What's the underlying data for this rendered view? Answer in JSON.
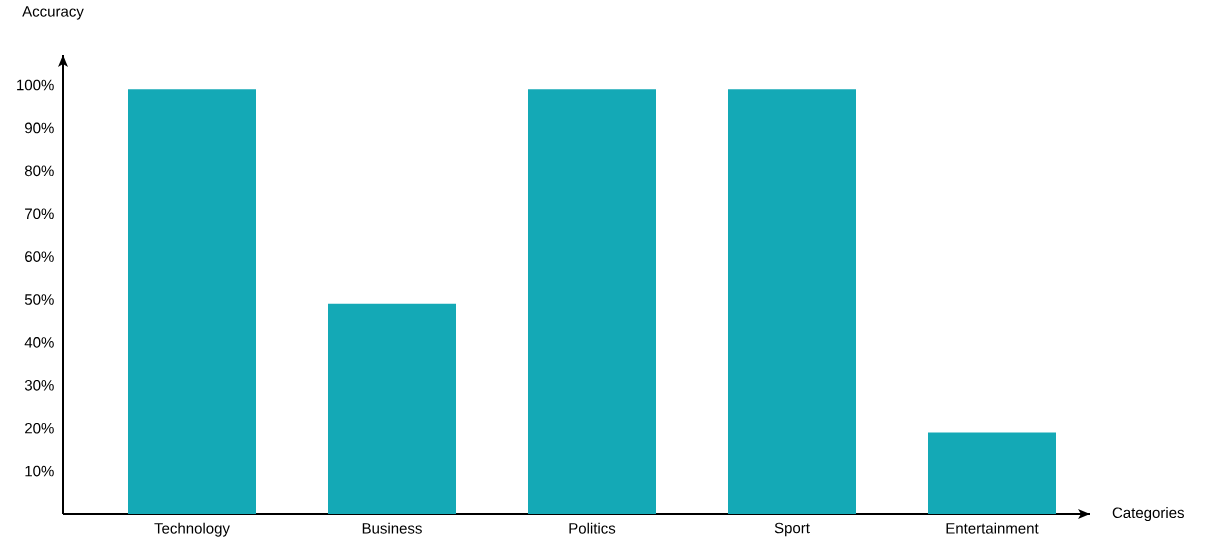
{
  "chart_data": {
    "type": "bar",
    "xlabel": "Categories",
    "ylabel": "Accuracy",
    "categories": [
      "Technology",
      "Business",
      "Politics",
      "Sport",
      "Entertainment"
    ],
    "values": [
      99,
      49,
      99,
      99,
      19
    ],
    "color": "#14a9b6",
    "ylim": [
      0,
      107
    ],
    "yticks": [
      {
        "value": 10,
        "label": "10%"
      },
      {
        "value": 20,
        "label": "20%"
      },
      {
        "value": 30,
        "label": "30%"
      },
      {
        "value": 40,
        "label": "40%"
      },
      {
        "value": 50,
        "label": "50%"
      },
      {
        "value": 60,
        "label": "60%"
      },
      {
        "value": 70,
        "label": "70%"
      },
      {
        "value": 80,
        "label": "80%"
      },
      {
        "value": 90,
        "label": "90%"
      },
      {
        "value": 100,
        "label": "100%"
      }
    ]
  }
}
